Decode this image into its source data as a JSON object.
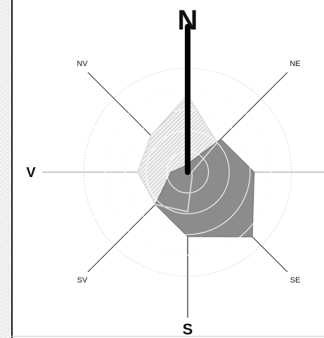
{
  "chart_data": {
    "type": "radar",
    "directions": [
      "N",
      "NE",
      "V",
      "SE",
      "S",
      "SV",
      "V",
      "NV"
    ],
    "direction_labels": {
      "N": "N",
      "NE": "NE",
      "E": "V",
      "SE": "SE",
      "S": "S",
      "SW": "SV",
      "W": "V",
      "NW": "NV"
    },
    "rmax": 5,
    "rings": [
      1,
      2,
      3,
      4,
      5
    ],
    "series": [
      {
        "style": "dark-gray-fill",
        "values": {
          "N": 0.4,
          "NE": 2.25,
          "E": 3.2,
          "SE": 4.4,
          "S": 3.1,
          "SW": 2.2,
          "W": 0.8,
          "NW": 0.35
        }
      },
      {
        "style": "light-hatched-outline",
        "values": {
          "N": 3.7,
          "NE": 2.0,
          "E": 0.2,
          "SE": 0.3,
          "S": 1.9,
          "SW": 2.2,
          "W": 2.4,
          "NW": 2.5
        }
      }
    ],
    "north_bar_length": 5.5,
    "colors": {
      "north_label": "#c0306a",
      "dark_fill": "#8c8c8c",
      "light_fill": "#ececec",
      "north_bar": "#000000"
    }
  }
}
